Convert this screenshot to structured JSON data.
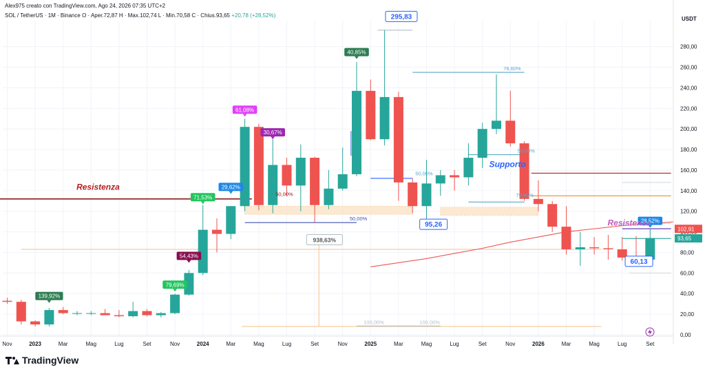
{
  "header": {
    "credit": "Alex975 creato con TradingView.com, Ago 24, 2026 07:35 UTC+2",
    "symbol": "SOL / TetherUS · 1M · Binance",
    "ohlc": "O · Aper.72,87  H · Max.102,74  L · Min.70,58  C · Chius.93,65",
    "change": "+20,78 (+28,52%)"
  },
  "brand": "TradingView",
  "colors": {
    "up": "#26a69a",
    "down": "#ef5350",
    "ma": "#ef5350",
    "resist": "#8b1a1a",
    "support": "#2962ff",
    "fib": "#5aa7c7",
    "zone": "#fbe3c5"
  },
  "chart_data": {
    "type": "candlestick",
    "currency": "USDT",
    "ylim": [
      0,
      300
    ],
    "y_ticks": [
      0,
      20,
      40,
      60,
      80,
      100,
      120,
      140,
      160,
      180,
      200,
      220,
      240,
      260,
      280
    ],
    "y_tick_labels": [
      "0,00",
      "20,00",
      "40,00",
      "60,00",
      "80,00",
      "100,00",
      "120,00",
      "140,00",
      "160,00",
      "180,00",
      "200,00",
      "220,00",
      "240,00",
      "260,00",
      "280,00"
    ],
    "x_labels": [
      {
        "i": 0,
        "text": "Nov"
      },
      {
        "i": 2,
        "text": "2023"
      },
      {
        "i": 4,
        "text": "Mar"
      },
      {
        "i": 6,
        "text": "Mag"
      },
      {
        "i": 8,
        "text": "Lug"
      },
      {
        "i": 10,
        "text": "Set"
      },
      {
        "i": 12,
        "text": "Nov"
      },
      {
        "i": 14,
        "text": "2024"
      },
      {
        "i": 16,
        "text": "Mar"
      },
      {
        "i": 18,
        "text": "Mag"
      },
      {
        "i": 20,
        "text": "Lug"
      },
      {
        "i": 22,
        "text": "Set"
      },
      {
        "i": 24,
        "text": "Nov"
      },
      {
        "i": 26,
        "text": "2025"
      },
      {
        "i": 28,
        "text": "Mar"
      },
      {
        "i": 30,
        "text": "Mag"
      },
      {
        "i": 32,
        "text": "Lug"
      },
      {
        "i": 34,
        "text": "Set"
      },
      {
        "i": 36,
        "text": "Nov"
      },
      {
        "i": 38,
        "text": "2026"
      },
      {
        "i": 40,
        "text": "Mar"
      },
      {
        "i": 42,
        "text": "Mag"
      },
      {
        "i": 44,
        "text": "Lug"
      },
      {
        "i": 46,
        "text": "Set"
      }
    ],
    "candles": [
      [
        33,
        36,
        30,
        32
      ],
      [
        32,
        34,
        10,
        13
      ],
      [
        13,
        14,
        8,
        10
      ],
      [
        10,
        26,
        8,
        24
      ],
      [
        24,
        27,
        20,
        21
      ],
      [
        21,
        23,
        19,
        21
      ],
      [
        21,
        23,
        19,
        21
      ],
      [
        21,
        25,
        19,
        19
      ],
      [
        19,
        24,
        17,
        18
      ],
      [
        18,
        32,
        17,
        23
      ],
      [
        23,
        25,
        18,
        19
      ],
      [
        19,
        22,
        17,
        21
      ],
      [
        21,
        40,
        20,
        39
      ],
      [
        39,
        63,
        38,
        60
      ],
      [
        60,
        126,
        58,
        102
      ],
      [
        102,
        113,
        80,
        98
      ],
      [
        98,
        125,
        93,
        125
      ],
      [
        125,
        210,
        120,
        202
      ],
      [
        202,
        205,
        121,
        126
      ],
      [
        126,
        190,
        118,
        165
      ],
      [
        165,
        172,
        135,
        145
      ],
      [
        145,
        185,
        120,
        172
      ],
      [
        172,
        173,
        109,
        126
      ],
      [
        126,
        160,
        122,
        142
      ],
      [
        142,
        182,
        140,
        156
      ],
      [
        156,
        265,
        154,
        237
      ],
      [
        237,
        248,
        189,
        190
      ],
      [
        190,
        296,
        184,
        231
      ],
      [
        231,
        236,
        130,
        148
      ],
      [
        148,
        152,
        118,
        125
      ],
      [
        125,
        170,
        105,
        147
      ],
      [
        147,
        160,
        135,
        155
      ],
      [
        155,
        160,
        140,
        153
      ],
      [
        153,
        186,
        145,
        172
      ],
      [
        172,
        206,
        162,
        200
      ],
      [
        200,
        253,
        195,
        208
      ],
      [
        208,
        237,
        183,
        186
      ],
      [
        186,
        188,
        130,
        132
      ],
      [
        132,
        150,
        120,
        127
      ],
      [
        127,
        130,
        100,
        105
      ],
      [
        105,
        125,
        78,
        83
      ],
      [
        83,
        100,
        67,
        85
      ],
      [
        85,
        95,
        78,
        84
      ],
      [
        84,
        97,
        73,
        83
      ],
      [
        83,
        95,
        72,
        75
      ],
      [
        75,
        96,
        70,
        73
      ],
      [
        73,
        103,
        71,
        94
      ]
    ],
    "ma": [
      [
        26,
        66
      ],
      [
        28,
        70
      ],
      [
        30,
        74
      ],
      [
        32,
        79
      ],
      [
        34,
        84
      ],
      [
        36,
        90
      ],
      [
        38,
        95
      ],
      [
        40,
        100
      ],
      [
        42,
        103
      ],
      [
        44,
        106
      ],
      [
        46,
        108
      ],
      [
        48,
        110
      ],
      [
        50,
        110
      ],
      [
        52,
        109
      ],
      [
        54,
        107
      ],
      [
        56,
        106
      ],
      [
        58,
        104
      ],
      [
        60,
        103
      ],
      [
        62,
        102
      ],
      [
        64,
        101
      ]
    ],
    "hlines": [
      {
        "price": 132,
        "from": -1,
        "to": 17.5,
        "color": "#8b1a1a",
        "width": 1.6
      },
      {
        "price": 157,
        "from": 37.5,
        "to": 47.5,
        "color": "#b71c1c",
        "width": 1.2
      },
      {
        "price": 135,
        "from": 37.5,
        "to": 47.5,
        "color": "#ef8a2c",
        "width": 1.2
      },
      {
        "price": 83,
        "from": 1,
        "to": 42.5,
        "color": "#f5c08a",
        "width": 1
      },
      {
        "price": 8,
        "from": 16.8,
        "to": 42.5,
        "color": "#f5c08a",
        "width": 1
      },
      {
        "price": 93.5,
        "from": 44,
        "to": 47.5,
        "color": "#26a69a",
        "width": 1.2
      },
      {
        "price": 103,
        "from": 44,
        "to": 47.5,
        "color": "#673ab7",
        "width": 1.2
      },
      {
        "price": 108,
        "from": 44,
        "to": 47.5,
        "color": "#cfd8dc",
        "width": 1
      },
      {
        "price": 148,
        "from": 44,
        "to": 47.5,
        "color": "#cfd8dc",
        "width": 1
      },
      {
        "price": 60,
        "from": 44.5,
        "to": 47.5,
        "color": "#cfd8dc",
        "width": 1
      }
    ],
    "fib_lines": [
      {
        "price": 296,
        "from": 26.5,
        "to": 29,
        "color": "#b0bec5",
        "label": "",
        "label_i": 0
      },
      {
        "price": 109,
        "from": 17,
        "to": 25,
        "color": "#3f51b5",
        "label": "50,00%",
        "label_i": 24.5
      },
      {
        "price": 8.5,
        "from": 25,
        "to": 29,
        "color": "#b0bec5",
        "label": "100,00%",
        "label_i": 25.5
      },
      {
        "price": 8.5,
        "from": 29,
        "to": 31,
        "color": "#b0bec5",
        "label": "100,00%",
        "label_i": 29.5
      },
      {
        "price": 255,
        "from": 29,
        "to": 37,
        "color": "#5aa7c7",
        "label": "78,60%",
        "label_i": 35.5
      },
      {
        "price": 175,
        "from": 33,
        "to": 37,
        "color": "#5aa7c7",
        "label": "",
        "label_i": 0
      },
      {
        "price": 152,
        "from": 26,
        "to": 29,
        "color": "#2962ff",
        "label": "",
        "label_i": 0
      },
      {
        "price": 129,
        "from": 33,
        "to": 37,
        "color": "#5aa7c7",
        "label": "",
        "label_i": 0
      }
    ],
    "fib_texts": [
      {
        "text": "50,00%",
        "i": 29.2,
        "price": 155,
        "color": "#5aa7c7"
      },
      {
        "text": "50,00%",
        "i": 36.5,
        "price": 177,
        "color": "#5aa7c7"
      },
      {
        "text": "50,00%",
        "i": 19.2,
        "price": 135,
        "color": "#8b1a1a"
      },
      {
        "text": "79,60%",
        "i": 36.4,
        "price": 134,
        "color": "#5aa7c7"
      }
    ],
    "zones": [
      {
        "from": 17,
        "to": 29,
        "low": 117,
        "high": 125
      },
      {
        "from": 31,
        "to": 38,
        "low": 116,
        "high": 124
      }
    ],
    "arrows": [
      {
        "i": 22.3,
        "from": 88,
        "to": 8,
        "color": "#f5c08a"
      },
      {
        "i": 24.6,
        "from": 174,
        "to": 198,
        "color": "#2962ff"
      }
    ],
    "pct_labels": [
      {
        "text": "139,92%",
        "i": 3,
        "price": 37,
        "bg": "#2e7d52"
      },
      {
        "text": "79,69%",
        "i": 12,
        "price": 48,
        "bg": "#22c55e"
      },
      {
        "text": "54,43%",
        "i": 13,
        "price": 76,
        "bg": "#880e4f"
      },
      {
        "text": "71,53%",
        "i": 14,
        "price": 133,
        "bg": "#22c55e"
      },
      {
        "text": "29,62%",
        "i": 16,
        "price": 143,
        "bg": "#1e88e5"
      },
      {
        "text": "61,08%",
        "i": 17,
        "price": 218,
        "bg": "#e040fb"
      },
      {
        "text": "30,67%",
        "i": 19,
        "price": 196,
        "bg": "#9c27b0"
      },
      {
        "text": "40,85%",
        "i": 25,
        "price": 274,
        "bg": "#2e7d52"
      },
      {
        "text": "28,52%",
        "i": 46,
        "price": 110,
        "bg": "#1e88e5"
      }
    ],
    "callouts": [
      {
        "text": "295,83",
        "i": 28.2,
        "price": 309,
        "color": "#2962ff"
      },
      {
        "text": "95,26",
        "i": 30.5,
        "price": 107,
        "color": "#2962ff"
      },
      {
        "text": "60,13",
        "i": 45.2,
        "price": 71,
        "color": "#2962ff"
      },
      {
        "text": "938,63%",
        "i": 22.7,
        "price": 92,
        "color": "#555"
      }
    ],
    "annotations": [
      {
        "text": "Resistenza",
        "i": 6.5,
        "price": 141,
        "color": "#b71c1c"
      },
      {
        "text": "Supporto",
        "i": 35.8,
        "price": 163,
        "color": "#2962ff"
      },
      {
        "text": "Resistenza",
        "i": 44.5,
        "price": 106,
        "color": "#c060c0"
      }
    ],
    "price_tags": [
      {
        "price": 102.91,
        "text": "102,91",
        "bg": "#ef5350"
      },
      {
        "price": 93.65,
        "text": "93,65",
        "bg": "#26a69a"
      }
    ]
  }
}
